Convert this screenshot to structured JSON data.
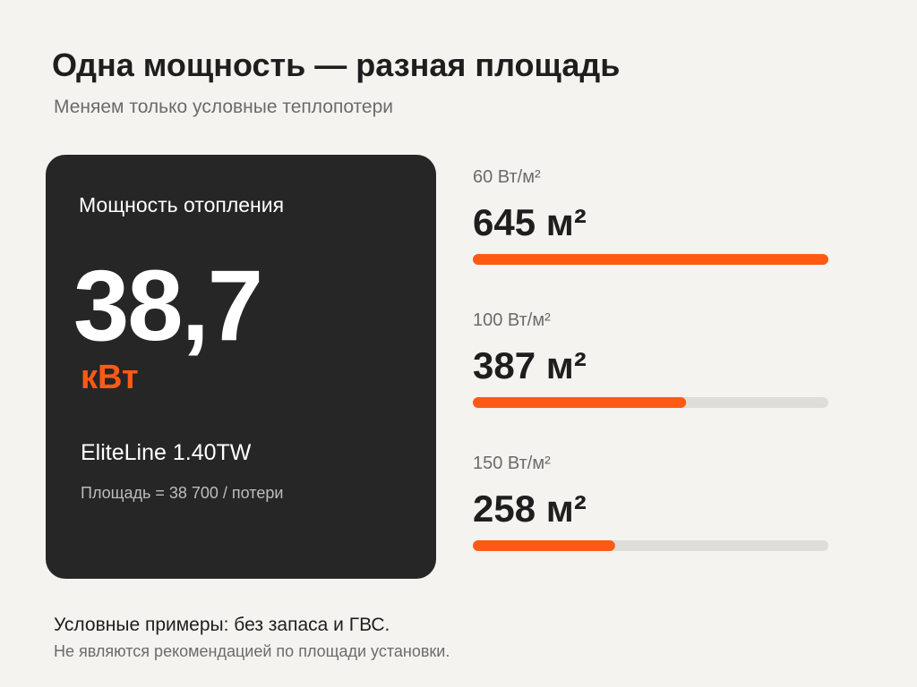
{
  "header": {
    "title": "Одна мощность — разная площадь",
    "subtitle": "Меняем только условные теплопотери"
  },
  "card": {
    "label": "Мощность отопления",
    "value": "38,7",
    "unit": "кВт",
    "model": "EliteLine 1.40TW",
    "formula": "Площадь = 38 700 / потери"
  },
  "chart_data": {
    "type": "bar",
    "orientation": "horizontal",
    "categories": [
      "60 Вт/м²",
      "100 Вт/м²",
      "150 Вт/м²"
    ],
    "values": [
      645,
      387,
      258
    ],
    "value_labels": [
      "645 м²",
      "387 м²",
      "258 м²"
    ],
    "xlim": [
      0,
      645
    ],
    "color": "#ff5a14",
    "track_color": "#dfddd7"
  },
  "footer": {
    "note": "Условные примеры: без запаса и ГВС.",
    "disclaimer": "Не являются рекомендацией по площади установки."
  }
}
